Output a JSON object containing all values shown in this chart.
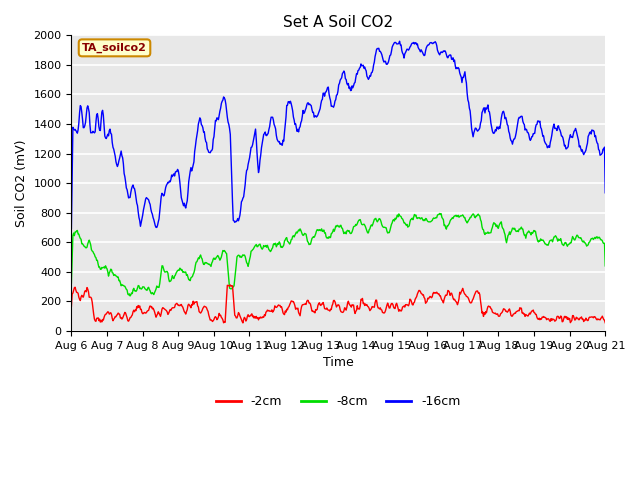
{
  "title": "Set A Soil CO2",
  "xlabel": "Time",
  "ylabel": "Soil CO2 (mV)",
  "legend_label": "TA_soilco2",
  "series_labels": [
    "-2cm",
    "-8cm",
    "-16cm"
  ],
  "series_colors": [
    "#ff0000",
    "#00dd00",
    "#0000ff"
  ],
  "ylim": [
    0,
    2000
  ],
  "plot_bg_color": "#e8e8e8",
  "xtick_labels": [
    "Aug 6",
    "Aug 7",
    "Aug 8",
    "Aug 9",
    "Aug 10",
    "Aug 11",
    "Aug 12",
    "Aug 13",
    "Aug 14",
    "Aug 15",
    "Aug 16",
    "Aug 17",
    "Aug 18",
    "Aug 19",
    "Aug 20",
    "Aug 21"
  ],
  "ytick_values": [
    0,
    200,
    400,
    600,
    800,
    1000,
    1200,
    1400,
    1600,
    1800,
    2000
  ],
  "legend_box_color": "#ffffcc",
  "legend_box_edge": "#cc8800",
  "legend_text_color": "#880000",
  "title_fontsize": 11,
  "axis_fontsize": 9,
  "tick_fontsize": 8
}
